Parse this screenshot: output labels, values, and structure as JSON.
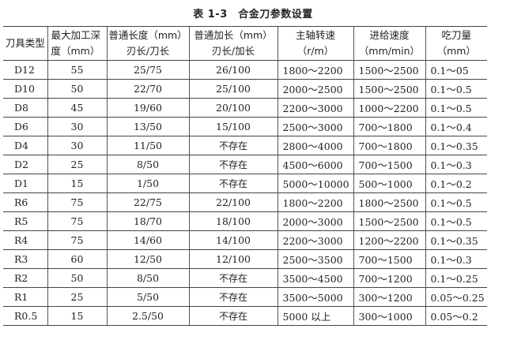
{
  "title": "表 1-3　合金刀参数设置",
  "headers": [
    [
      "刀具类型"
    ],
    [
      "最大加工深",
      "度（mm）"
    ],
    [
      "普通长度（mm）",
      "刃长/刀长"
    ],
    [
      "普通加长（mm）",
      "刃长/加长"
    ],
    [
      "主轴转速",
      "（r/m）"
    ],
    [
      "进给速度",
      "（mm/min）"
    ],
    [
      "吃刀量",
      "（mm）"
    ]
  ],
  "rows": [
    [
      "D12",
      "55",
      "25/75",
      "26/100",
      "1800～2200",
      "1500～2500",
      "0.1～05"
    ],
    [
      "D10",
      "50",
      "22/70",
      "25/100",
      "2000～2500",
      "1500～2500",
      "0.1～0.5"
    ],
    [
      "D8",
      "45",
      "19/60",
      "20/100",
      "2200～3000",
      "1000～2200",
      "0.1～0.5"
    ],
    [
      "D6",
      "30",
      "13/50",
      "15/100",
      "2500～3000",
      "700～1800",
      "0.1～0.4"
    ],
    [
      "D4",
      "30",
      "11/50",
      "不存在",
      "2800～4000",
      "700～1800",
      "0.1～0.35"
    ],
    [
      "D2",
      "25",
      "8/50",
      "不存在",
      "4500～6000",
      "700～1500",
      "0.1～0.3"
    ],
    [
      "D1",
      "15",
      "1/50",
      "不存在",
      "5000～10000",
      "500～1000",
      "0.1～0.2"
    ],
    [
      "R6",
      "75",
      "22/75",
      "22/100",
      "1800～2200",
      "1800～2500",
      "0.1～0.5"
    ],
    [
      "R5",
      "75",
      "18/70",
      "18/100",
      "2000～3000",
      "1500～2500",
      "0.1～0.5"
    ],
    [
      "R4",
      "75",
      "14/60",
      "14/100",
      "2200～3000",
      "1200～2200",
      "0.1～0.35"
    ],
    [
      "R3",
      "60",
      "12/50",
      "12/100",
      "2500～3500",
      "700～1500",
      "0.1～0.3"
    ],
    [
      "R2",
      "50",
      "8/50",
      "不存在",
      "3500～4500",
      "700～1200",
      "0.1～0.25"
    ],
    [
      "R1",
      "25",
      "5/50",
      "不存在",
      "3500～5000",
      "300～1200",
      "0.05～0.25"
    ],
    [
      "R0.5",
      "15",
      "2.5/50",
      "不存在",
      "5000 以上",
      "300～1000",
      "0.05～0.2"
    ]
  ]
}
